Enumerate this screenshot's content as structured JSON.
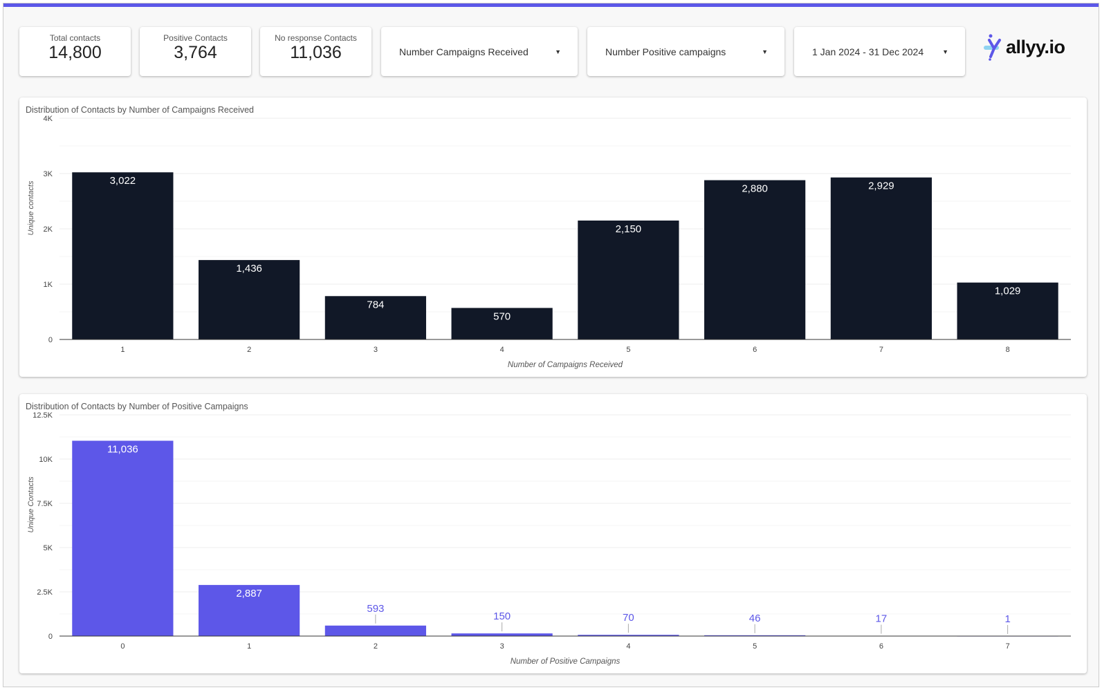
{
  "kpis": [
    {
      "label": "Total contacts",
      "value": "14,800"
    },
    {
      "label": "Positive Contacts",
      "value": "3,764"
    },
    {
      "label": "No response Contacts",
      "value": "11,036"
    }
  ],
  "filters": [
    {
      "label": "Number Campaigns Received",
      "icon": "caret-down-icon"
    },
    {
      "label": "Number Positive campaigns",
      "icon": "caret-down-icon"
    },
    {
      "label": "1 Jan 2024 - 31 Dec 2024",
      "icon": "caret-down-icon"
    }
  ],
  "logo": {
    "text": "allyy.io"
  },
  "colors": {
    "accent": "#5b57e8",
    "bar_dark": "#111827",
    "bar_purple": "#5d57e8"
  },
  "chart_data": [
    {
      "type": "bar",
      "title": "Distribution of Contacts by Number of Campaigns Received",
      "xlabel": "Number of Campaigns Received",
      "ylabel": "Unique contacts",
      "categories": [
        "1",
        "2",
        "3",
        "4",
        "5",
        "6",
        "7",
        "8"
      ],
      "values": [
        3022,
        1436,
        784,
        570,
        2150,
        2880,
        2929,
        1029
      ],
      "value_labels": [
        "3,022",
        "1,436",
        "784",
        "570",
        "2,150",
        "2,880",
        "2,929",
        "1,029"
      ],
      "ylim": [
        0,
        4000
      ],
      "yticks": [
        0,
        1000,
        2000,
        3000,
        4000
      ],
      "ytick_labels": [
        "0",
        "1K",
        "2K",
        "3K",
        "4K"
      ],
      "grid": true,
      "color": "#111827"
    },
    {
      "type": "bar",
      "title": "Distribution of Contacts by Number of Positive Campaigns",
      "xlabel": "Number of Positive Campaigns",
      "ylabel": "Unique Contacts",
      "categories": [
        "0",
        "1",
        "2",
        "3",
        "4",
        "5",
        "6",
        "7"
      ],
      "values": [
        11036,
        2887,
        593,
        150,
        70,
        46,
        17,
        1
      ],
      "value_labels": [
        "11,036",
        "2,887",
        "593",
        "150",
        "70",
        "46",
        "17",
        "1"
      ],
      "ylim": [
        0,
        12500
      ],
      "yticks": [
        0,
        2500,
        5000,
        7500,
        10000,
        12500
      ],
      "ytick_labels": [
        "0",
        "2.5K",
        "5K",
        "7.5K",
        "10K",
        "12.5K"
      ],
      "grid": true,
      "color": "#5d57e8"
    }
  ]
}
